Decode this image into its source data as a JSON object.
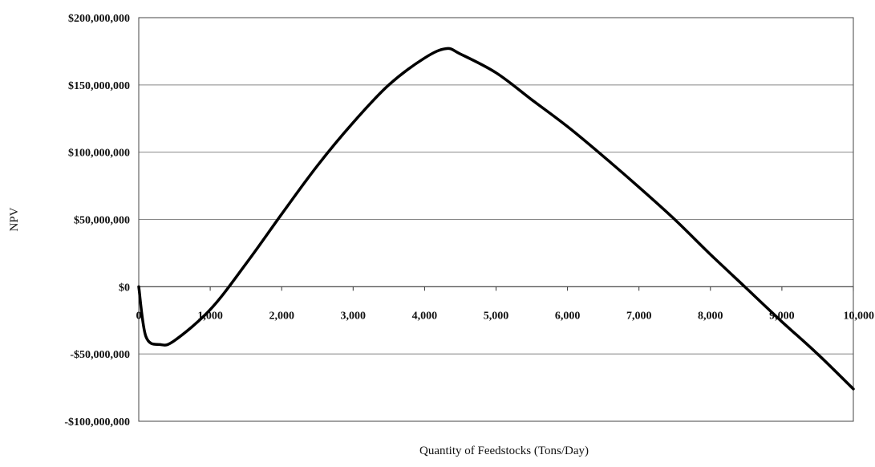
{
  "chart_data": {
    "type": "line",
    "title": "",
    "xlabel": "Quantity of Feedstocks (Tons/Day)",
    "ylabel": "NPV",
    "xlim": [
      0,
      10000
    ],
    "ylim": [
      -100000000,
      200000000
    ],
    "grid": true,
    "legend": "none",
    "x_ticks": [
      0,
      1000,
      2000,
      3000,
      4000,
      5000,
      6000,
      7000,
      8000,
      9000,
      10000
    ],
    "x_tick_labels": [
      "0",
      "1,000",
      "2,000",
      "3,000",
      "4,000",
      "5,000",
      "6,000",
      "7,000",
      "8,000",
      "9,000",
      "10,000"
    ],
    "y_ticks": [
      200000000,
      150000000,
      100000000,
      50000000,
      0,
      -50000000,
      -100000000
    ],
    "y_tick_labels": [
      "$200,000,000",
      "$150,000,000",
      "$100,000,000",
      "$50,000,000",
      "$0",
      "-$50,000,000",
      "-$100,000,000"
    ],
    "series": [
      {
        "color": "#000000",
        "x": [
          0,
          100,
          300,
          500,
          1000,
          1500,
          2000,
          2500,
          3000,
          3500,
          4000,
          4300,
          4500,
          5000,
          5500,
          6000,
          6500,
          7000,
          7500,
          8000,
          8500,
          9000,
          9500,
          10000
        ],
        "y": [
          0,
          -37000000,
          -43000000,
          -40000000,
          -17000000,
          17000000,
          54000000,
          90000000,
          122000000,
          150000000,
          170000000,
          177000000,
          173000000,
          159000000,
          139000000,
          119000000,
          97000000,
          74000000,
          50000000,
          24000000,
          -1000000,
          -26000000,
          -50000000,
          -76000000
        ]
      }
    ]
  }
}
